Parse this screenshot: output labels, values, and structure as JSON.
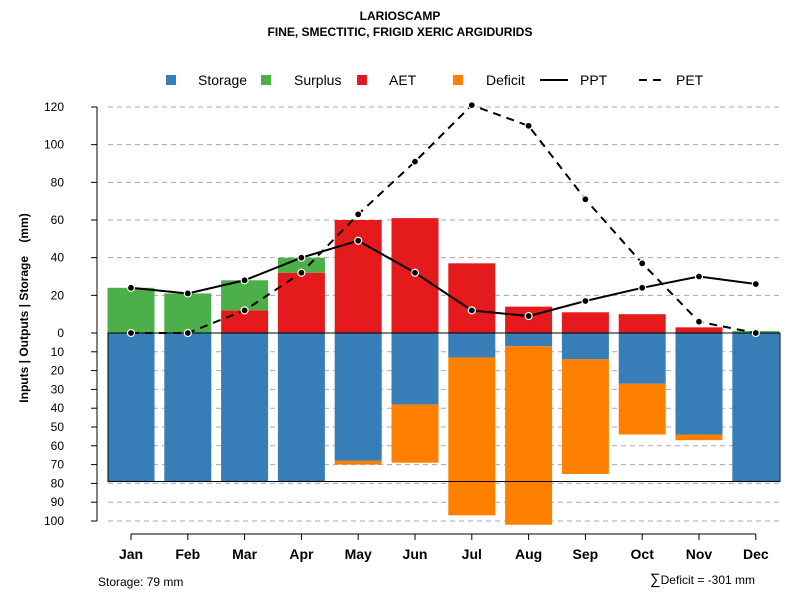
{
  "chart_data": {
    "type": "bar",
    "title": "LARIOSCAMP",
    "subtitle": "FINE, SMECTITIC, FRIGID XERIC ARGIDURIDS",
    "ylabel": "Inputs | Outputs | Storage    (mm)",
    "categories": [
      "Jan",
      "Feb",
      "Mar",
      "Apr",
      "May",
      "Jun",
      "Jul",
      "Aug",
      "Sep",
      "Oct",
      "Nov",
      "Dec"
    ],
    "upper_ylim": [
      0,
      120
    ],
    "upper_ticks": [
      0,
      20,
      40,
      60,
      80,
      100,
      120
    ],
    "lower_ylim": [
      0,
      100
    ],
    "lower_ticks": [
      10,
      20,
      30,
      40,
      50,
      60,
      70,
      80,
      90,
      100
    ],
    "storage_capacity": 79,
    "series": [
      {
        "name": "Storage",
        "kind": "bar-below",
        "color": "#377eb8",
        "values": [
          79,
          79,
          79,
          79,
          68,
          38,
          13,
          7,
          14,
          27,
          54,
          79
        ]
      },
      {
        "name": "Surplus",
        "kind": "bar-above",
        "color": "#4daf4a",
        "values": [
          24,
          21,
          16,
          8,
          0,
          0,
          0,
          0,
          0,
          0,
          0,
          1
        ]
      },
      {
        "name": "AET",
        "kind": "bar-above",
        "color": "#e41a1c",
        "values": [
          0,
          0,
          12,
          32,
          60,
          61,
          37,
          14,
          11,
          10,
          3,
          0
        ]
      },
      {
        "name": "Deficit",
        "kind": "bar-below",
        "color": "#ff7f00",
        "values": [
          0,
          0,
          0,
          0,
          2,
          31,
          84,
          95,
          61,
          27,
          3,
          0
        ]
      },
      {
        "name": "PPT",
        "kind": "line",
        "color": "#000000",
        "values": [
          24,
          21,
          28,
          40,
          49,
          32,
          12,
          9,
          17,
          24,
          30,
          26
        ]
      },
      {
        "name": "PET",
        "kind": "dashed-line",
        "color": "#000000",
        "values": [
          0,
          0,
          12,
          32,
          63,
          91,
          121,
          110,
          71,
          37,
          6,
          0
        ]
      }
    ],
    "legend_position": "top",
    "grid": true,
    "footer_left": "Storage: 79 mm",
    "footer_right_symbol": "∑",
    "footer_right": "Deficit = -301 mm"
  }
}
